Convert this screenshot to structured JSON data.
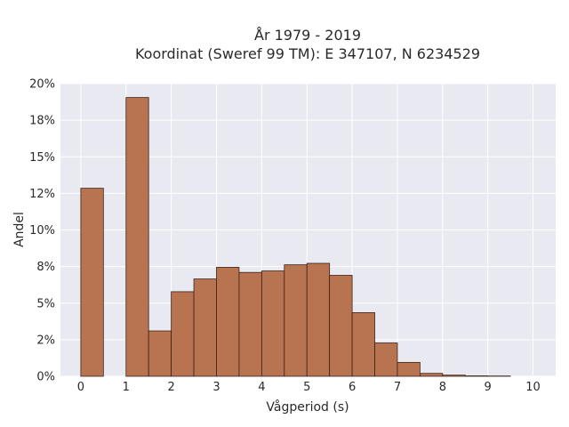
{
  "chart_data": {
    "type": "bar",
    "title_line1": "År 1979 - 2019",
    "title_line2": "Koordinat (Sweref 99 TM): E 347107, N 6234529",
    "xlabel": "Vågperiod (s)",
    "ylabel": "Andel",
    "xlim": [
      -0.45,
      10.5
    ],
    "ylim": [
      0,
      0.2
    ],
    "x_ticks": [
      0,
      1,
      2,
      3,
      4,
      5,
      6,
      7,
      8,
      9,
      10
    ],
    "x_tick_labels": [
      "0",
      "1",
      "2",
      "3",
      "4",
      "5",
      "6",
      "7",
      "8",
      "9",
      "10"
    ],
    "y_ticks": [
      0,
      0.025,
      0.05,
      0.075,
      0.1,
      0.125,
      0.15,
      0.175,
      0.2
    ],
    "y_tick_labels": [
      "0%",
      "2%",
      "5%",
      "8%",
      "10%",
      "12%",
      "15%",
      "18%",
      "20%"
    ],
    "bin_width": 0.5,
    "bins": [
      {
        "start": 0.0,
        "value": 0.1285
      },
      {
        "start": 1.0,
        "value": 0.1905
      },
      {
        "start": 1.5,
        "value": 0.031
      },
      {
        "start": 2.0,
        "value": 0.0578
      },
      {
        "start": 2.5,
        "value": 0.0665
      },
      {
        "start": 3.0,
        "value": 0.0745
      },
      {
        "start": 3.5,
        "value": 0.071
      },
      {
        "start": 4.0,
        "value": 0.072
      },
      {
        "start": 4.5,
        "value": 0.0762
      },
      {
        "start": 5.0,
        "value": 0.0772
      },
      {
        "start": 5.5,
        "value": 0.069
      },
      {
        "start": 6.0,
        "value": 0.0435
      },
      {
        "start": 6.5,
        "value": 0.0228
      },
      {
        "start": 7.0,
        "value": 0.0095
      },
      {
        "start": 7.5,
        "value": 0.002
      },
      {
        "start": 8.0,
        "value": 0.0008
      },
      {
        "start": 8.5,
        "value": 0.0003
      },
      {
        "start": 9.0,
        "value": 0.0002
      }
    ],
    "grid": true,
    "legend": "none",
    "bar_color": "#b87350",
    "bar_edge_color": "#3a2418",
    "plot_background": "#e9e9f1"
  }
}
